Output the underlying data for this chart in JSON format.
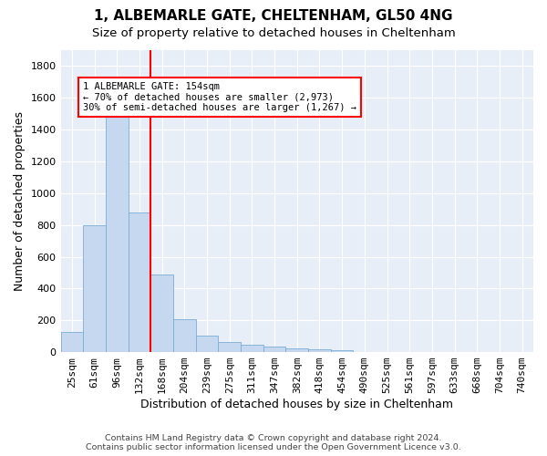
{
  "title1": "1, ALBEMARLE GATE, CHELTENHAM, GL50 4NG",
  "title2": "Size of property relative to detached houses in Cheltenham",
  "xlabel": "Distribution of detached houses by size in Cheltenham",
  "ylabel": "Number of detached properties",
  "footer1": "Contains HM Land Registry data © Crown copyright and database right 2024.",
  "footer2": "Contains public sector information licensed under the Open Government Licence v3.0.",
  "categories": [
    "25sqm",
    "61sqm",
    "96sqm",
    "132sqm",
    "168sqm",
    "204sqm",
    "239sqm",
    "275sqm",
    "311sqm",
    "347sqm",
    "382sqm",
    "418sqm",
    "454sqm",
    "490sqm",
    "525sqm",
    "561sqm",
    "597sqm",
    "633sqm",
    "668sqm",
    "704sqm",
    "740sqm"
  ],
  "values": [
    125,
    800,
    1480,
    880,
    490,
    205,
    105,
    65,
    45,
    35,
    25,
    20,
    10,
    0,
    0,
    0,
    0,
    0,
    0,
    0,
    0
  ],
  "bar_color": "#c5d8f0",
  "bar_edge_color": "#7aadd4",
  "vline_color": "red",
  "vline_pos": 3.5,
  "annotation_text": "1 ALBEMARLE GATE: 154sqm\n← 70% of detached houses are smaller (2,973)\n30% of semi-detached houses are larger (1,267) →",
  "annotation_box_color": "white",
  "annotation_box_edge_color": "red",
  "ylim": [
    0,
    1900
  ],
  "yticks": [
    0,
    200,
    400,
    600,
    800,
    1000,
    1200,
    1400,
    1600,
    1800
  ],
  "plot_bg_color": "#e8eef7",
  "grid_color": "white",
  "title_fontsize": 11,
  "subtitle_fontsize": 9.5,
  "ylabel_fontsize": 9,
  "xlabel_fontsize": 9,
  "tick_fontsize": 8,
  "footer_fontsize": 6.8
}
